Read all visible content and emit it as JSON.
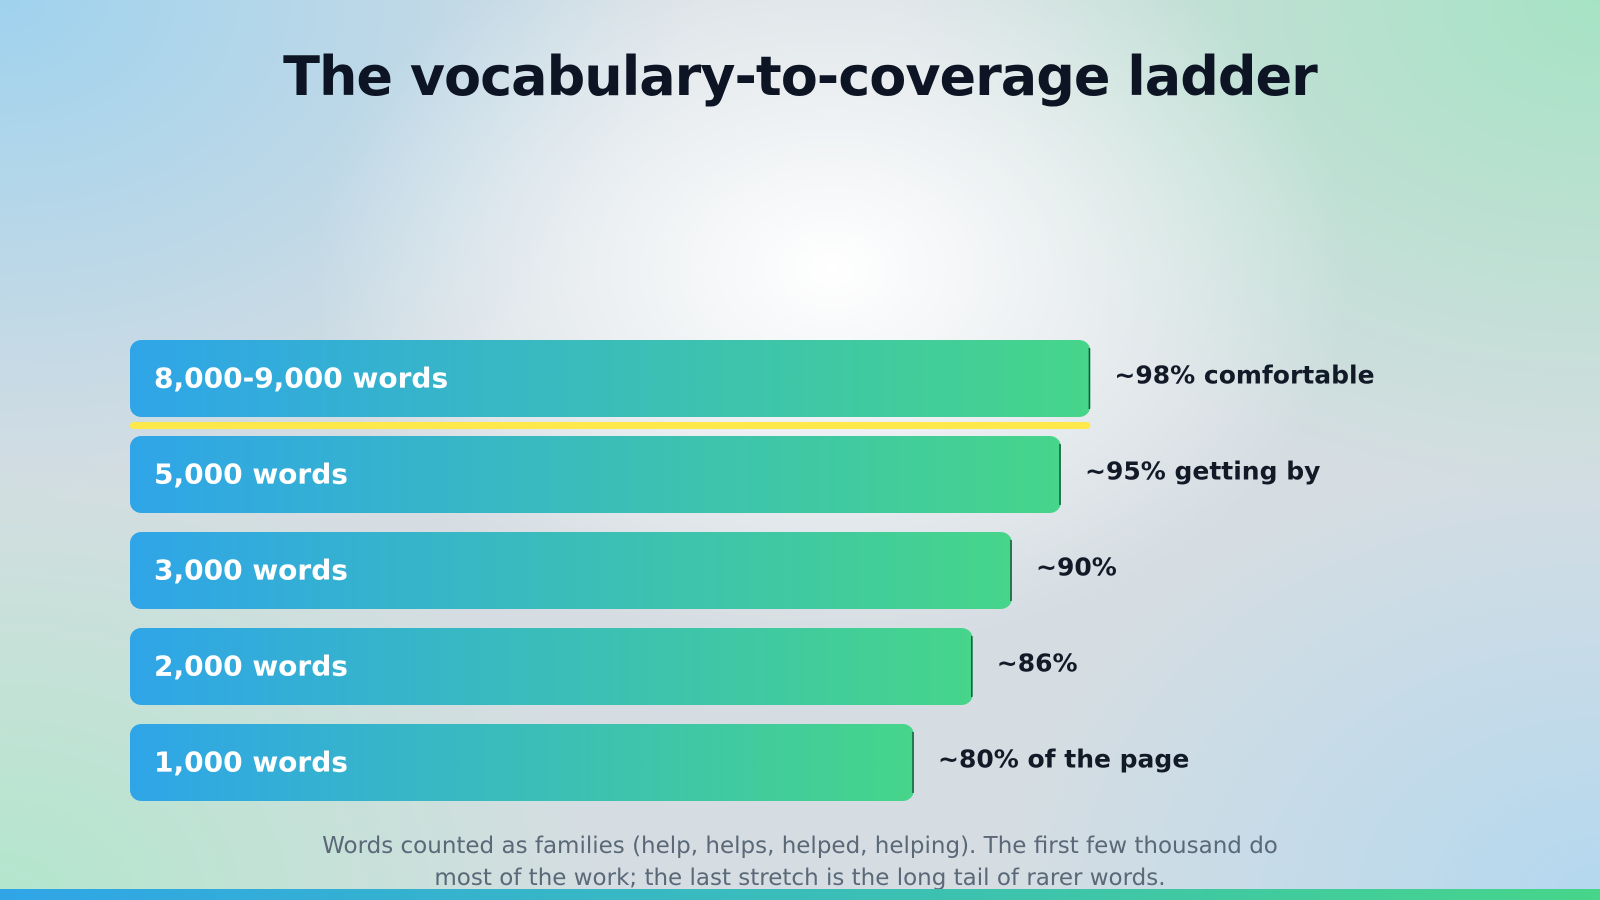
{
  "chart_data": {
    "type": "bar",
    "orientation": "horizontal",
    "title": "The vocabulary-to-coverage ladder",
    "categories": [
      "8,000-9,000 words",
      "5,000 words",
      "3,000 words",
      "2,000 words",
      "1,000 words"
    ],
    "values": [
      98,
      95,
      90,
      86,
      80
    ],
    "value_labels": [
      "~98% comfortable",
      "~95% getting by",
      "~90%",
      "~86%",
      "~80% of the page"
    ],
    "xlim": [
      0,
      100
    ],
    "colors": [
      "#2fa5e8",
      "#46d58a"
    ],
    "footnote": "Words counted as families (help, helps, helped, helping). The first few thousand do most of the work; the last stretch is the long tail of rarer words."
  }
}
